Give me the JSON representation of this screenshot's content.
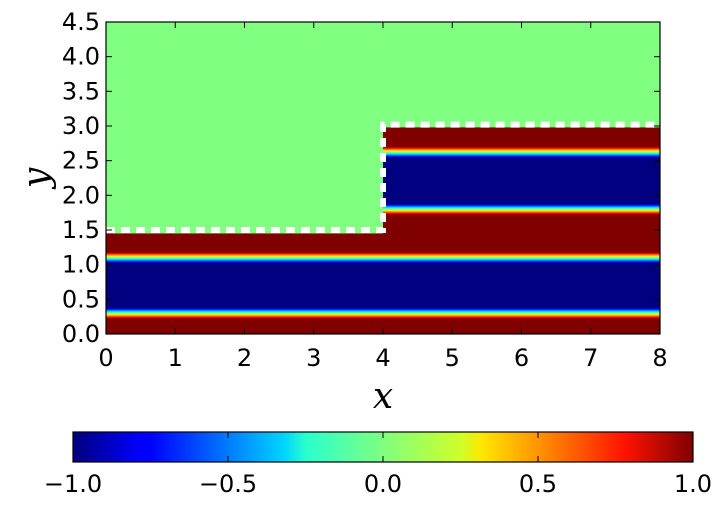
{
  "chart_data": {
    "type": "heatmap",
    "title": "",
    "xlabel": "x",
    "ylabel": "y",
    "xlim": [
      0,
      8
    ],
    "ylim": [
      0,
      4.5
    ],
    "x_ticks": [
      "0",
      "1",
      "2",
      "3",
      "4",
      "5",
      "6",
      "7",
      "8"
    ],
    "y_ticks": [
      "0.0",
      "0.5",
      "1.0",
      "1.5",
      "2.0",
      "2.5",
      "3.0",
      "3.5",
      "4.0",
      "4.5"
    ],
    "colormap": "jet",
    "colorbar": {
      "orientation": "horizontal",
      "placement": "bottom",
      "range": [
        -1,
        1
      ],
      "ticks": [
        "−1.0",
        "−0.5",
        "0.0",
        "0.5",
        "1.0"
      ]
    },
    "background_value": 0,
    "regions": [
      {
        "x_range": [
          0,
          8
        ],
        "y_range": [
          0,
          0.3
        ],
        "value": 1
      },
      {
        "x_range": [
          0,
          8
        ],
        "y_range": [
          0.3,
          1.1
        ],
        "value": -1
      },
      {
        "x_range": [
          0,
          4
        ],
        "y_range": [
          1.1,
          1.45
        ],
        "value": 1
      },
      {
        "x_range": [
          4,
          8
        ],
        "y_range": [
          1.1,
          1.8
        ],
        "value": 1
      },
      {
        "x_range": [
          4,
          8
        ],
        "y_range": [
          1.8,
          2.62
        ],
        "value": -1
      },
      {
        "x_range": [
          4,
          8
        ],
        "y_range": [
          2.62,
          2.98
        ],
        "value": 1
      }
    ],
    "boundary": {
      "style": "white dashed",
      "points": [
        [
          0,
          1.5
        ],
        [
          4,
          1.5
        ],
        [
          4,
          3.02
        ],
        [
          8,
          3.02
        ]
      ]
    }
  }
}
